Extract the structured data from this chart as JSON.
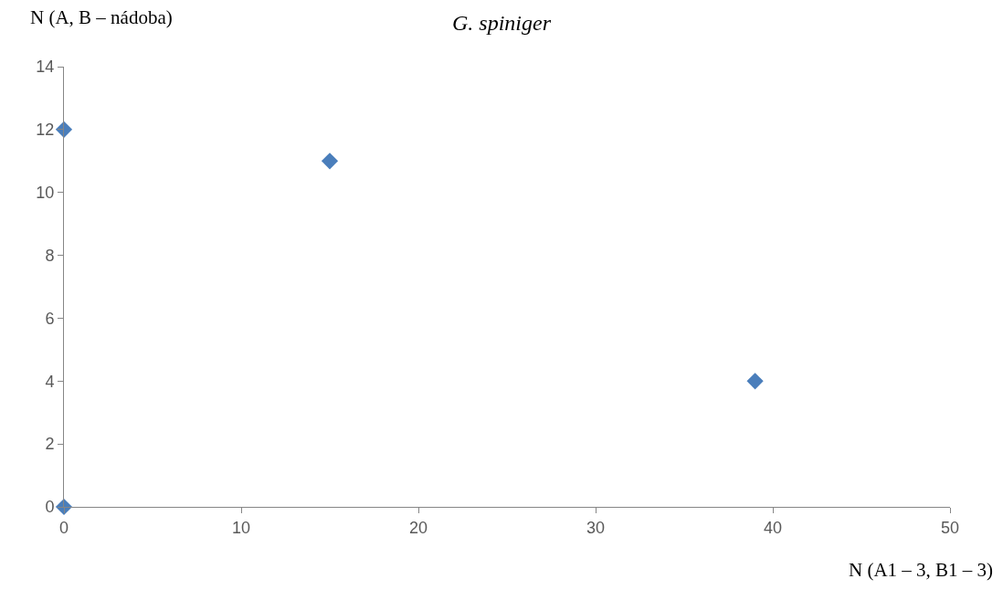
{
  "chart_data": {
    "type": "scatter",
    "title": "G. spiniger",
    "xlabel": "N (A1 – 3, B1 – 3)",
    "ylabel": "N (A, B – nádoba)",
    "x": [
      0,
      15,
      39,
      0
    ],
    "series": [
      {
        "color": "#4a7ebb",
        "values": [
          12,
          11,
          4,
          0
        ]
      }
    ],
    "marker": "diamond",
    "legend": false,
    "xlim": [
      0,
      50
    ],
    "xticks": [
      0,
      10,
      20,
      30,
      40,
      50
    ],
    "ylim": [
      0,
      14
    ],
    "yticks": [
      0,
      2,
      4,
      6,
      8,
      10,
      12,
      14
    ]
  }
}
